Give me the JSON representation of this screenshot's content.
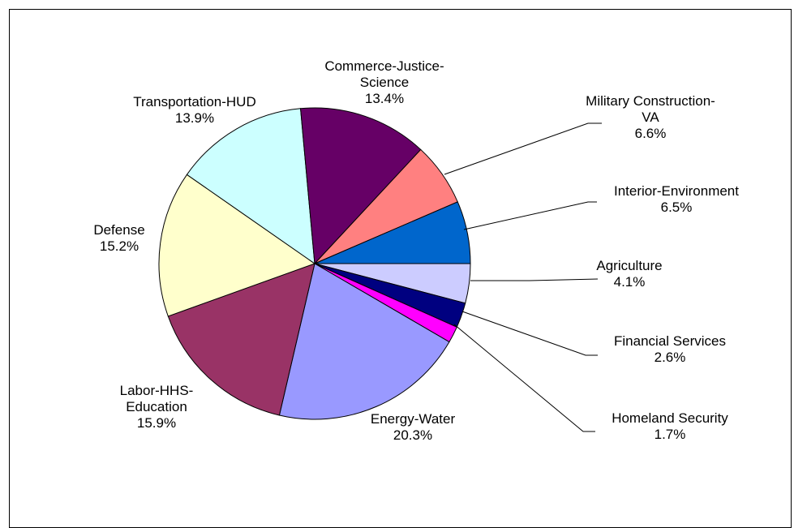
{
  "chart_data": {
    "type": "pie",
    "title": "",
    "start_angle_deg": 0,
    "direction": "clockwise",
    "slices": [
      {
        "label_lines": [
          "Agriculture",
          "4.1%"
        ],
        "value": 4.1,
        "color": "#ccccff"
      },
      {
        "label_lines": [
          "Financial Services",
          "2.6%"
        ],
        "value": 2.6,
        "color": "#000080"
      },
      {
        "label_lines": [
          "Homeland Security",
          "1.7%"
        ],
        "value": 1.7,
        "color": "#ff00ff"
      },
      {
        "label_lines": [
          "Energy-Water",
          "20.3%"
        ],
        "value": 20.3,
        "color": "#9999ff"
      },
      {
        "label_lines": [
          "Labor-HHS-",
          "Education",
          "15.9%"
        ],
        "value": 15.9,
        "color": "#993366"
      },
      {
        "label_lines": [
          "Defense",
          "15.2%"
        ],
        "value": 15.2,
        "color": "#ffffcc"
      },
      {
        "label_lines": [
          "Transportation-HUD",
          "13.9%"
        ],
        "value": 13.9,
        "color": "#ccffff"
      },
      {
        "label_lines": [
          "Commerce-Justice-",
          "Science",
          "13.4%"
        ],
        "value": 13.4,
        "color": "#660066"
      },
      {
        "label_lines": [
          "Military Construction-",
          "VA",
          "6.6%"
        ],
        "value": 6.6,
        "color": "#ff8080"
      },
      {
        "label_lines": [
          "Interior-Environment",
          "6.5%"
        ],
        "value": 6.5,
        "color": "#0066cc"
      }
    ]
  }
}
